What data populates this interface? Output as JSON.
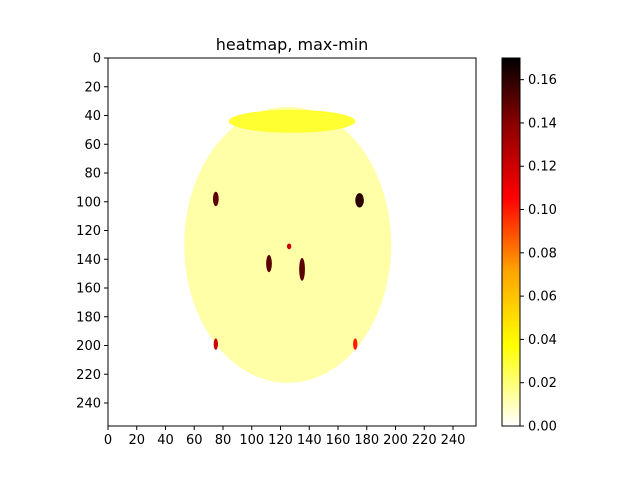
{
  "chart_data": {
    "type": "heatmap",
    "title": "heatmap, max-min",
    "xlabel": "",
    "ylabel": "",
    "image_shape": [
      256,
      256
    ],
    "xlim": [
      0,
      256
    ],
    "ylim": [
      256,
      0
    ],
    "x_ticks": [
      0,
      20,
      40,
      60,
      80,
      100,
      120,
      140,
      160,
      180,
      200,
      220,
      240
    ],
    "y_ticks": [
      0,
      20,
      40,
      60,
      80,
      100,
      120,
      140,
      160,
      180,
      200,
      220,
      240
    ],
    "x_tick_labels": [
      "0",
      "20",
      "40",
      "60",
      "80",
      "100",
      "120",
      "140",
      "160",
      "180",
      "200",
      "220",
      "240"
    ],
    "y_tick_labels": [
      "0",
      "20",
      "40",
      "60",
      "80",
      "100",
      "120",
      "140",
      "160",
      "180",
      "200",
      "220",
      "240"
    ],
    "colormap": "hot_r",
    "colorbar": {
      "range": [
        0.0,
        0.17
      ],
      "ticks": [
        0.0,
        0.02,
        0.04,
        0.06,
        0.08,
        0.1,
        0.12,
        0.14,
        0.16
      ],
      "tick_labels": [
        "0.00",
        "0.02",
        "0.04",
        "0.06",
        "0.08",
        "0.10",
        "0.12",
        "0.14",
        "0.16"
      ],
      "colors": [
        "#ffffff",
        "#ffff00",
        "#ffa500",
        "#ff0000",
        "#8b0000",
        "#000000"
      ]
    },
    "regions": [
      {
        "name": "head-outline",
        "cx": 125,
        "cy": 130,
        "rx": 72,
        "ry": 96,
        "value": 0.015
      },
      {
        "name": "skull-rim",
        "cx": 128,
        "cy": 44,
        "rx": 44,
        "ry": 8,
        "value": 0.03
      },
      {
        "name": "left-orbit-edge",
        "cx": 75,
        "cy": 98,
        "rx": 2,
        "ry": 5,
        "value": 0.15
      },
      {
        "name": "right-orbit-edge",
        "cx": 175,
        "cy": 99,
        "rx": 3,
        "ry": 5,
        "value": 0.16
      },
      {
        "name": "left-optic-canal",
        "cx": 112,
        "cy": 143,
        "rx": 2,
        "ry": 6,
        "value": 0.15
      },
      {
        "name": "right-optic-canal",
        "cx": 135,
        "cy": 147,
        "rx": 2,
        "ry": 8,
        "value": 0.15
      },
      {
        "name": "sella",
        "cx": 126,
        "cy": 131,
        "rx": 1.5,
        "ry": 2,
        "value": 0.12
      },
      {
        "name": "maxilla-left",
        "cx": 75,
        "cy": 199,
        "rx": 1.5,
        "ry": 4,
        "value": 0.12
      },
      {
        "name": "maxilla-right",
        "cx": 172,
        "cy": 199,
        "rx": 1.5,
        "ry": 4,
        "value": 0.1
      }
    ]
  }
}
